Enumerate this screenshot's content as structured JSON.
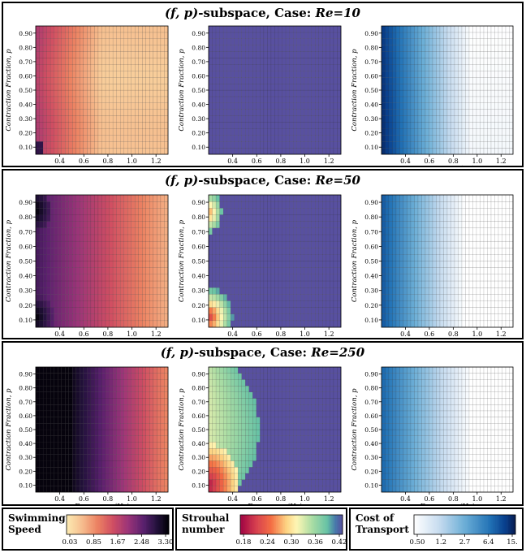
{
  "rows": [
    {
      "prefix": "(f, p)",
      "middle": "-subspace, Case: ",
      "case": "Re=10"
    },
    {
      "prefix": "(f, p)",
      "middle": "-subspace, Case: ",
      "case": "Re=50"
    },
    {
      "prefix": "(f, p)",
      "middle": "-subspace, Case: ",
      "case": "Re=250"
    }
  ],
  "axes": {
    "xlabel": "Frequency (Hz)",
    "ylabel": "Contraction Fraction, p",
    "xticks": [
      "0.4",
      "0.6",
      "0.8",
      "1.0",
      "1.2"
    ],
    "xtick_values": [
      0.4,
      0.6,
      0.8,
      1.0,
      1.2
    ],
    "yticks": [
      "0.10",
      "0.20",
      "0.30",
      "0.40",
      "0.50",
      "0.60",
      "0.70",
      "0.80",
      "0.90"
    ],
    "ytick_values": [
      0.1,
      0.2,
      0.3,
      0.4,
      0.5,
      0.6,
      0.7,
      0.8,
      0.9
    ]
  },
  "chart_data": {
    "type": "heatmap",
    "grid": {
      "f_range": [
        0.2,
        1.3
      ],
      "p_range": [
        0.05,
        0.95
      ],
      "nx": 36,
      "ny": 20
    },
    "xlabel": "Frequency (Hz)",
    "ylabel": "Contraction Fraction, p",
    "cases": [
      "Re=10",
      "Re=50",
      "Re=250"
    ],
    "metrics": [
      {
        "name": "Swimming Speed",
        "colormap": "magma_r",
        "range": [
          0.03,
          3.3
        ]
      },
      {
        "name": "Strouhal number",
        "colormap": "spectral",
        "range": [
          0.18,
          0.42
        ]
      },
      {
        "name": "Cost of Transport",
        "colormap": "blues_log",
        "range": [
          0.5,
          15
        ]
      }
    ]
  },
  "colorbars": [
    {
      "label_line1": "Swimming",
      "label_line2": "Speed",
      "ticks": [
        "0.03",
        "0.85",
        "1.67",
        "2.48",
        "3.30"
      ]
    },
    {
      "label_line1": "Strouhal",
      "label_line2": "number",
      "ticks": [
        "0.18",
        "0.24",
        "0.30",
        "0.36",
        "0.42"
      ]
    },
    {
      "label_line1": "Cost of",
      "label_line2": "Transport",
      "ticks": [
        "0.50",
        "1.2",
        "2.7",
        "6.4",
        "15."
      ]
    }
  ]
}
